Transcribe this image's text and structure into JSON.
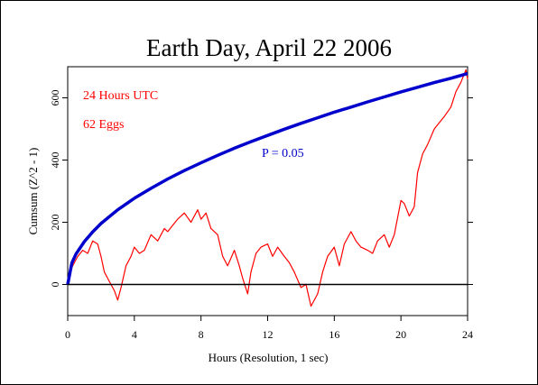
{
  "chart_data": {
    "type": "line",
    "title": "Earth Day, April 22 2006",
    "xlabel": "Hours (Resolution, 1 sec)",
    "ylabel": "Cumsum (Z^2 - 1)",
    "xlim": [
      0,
      24
    ],
    "ylim": [
      -100,
      700
    ],
    "xticks": [
      0,
      4,
      8,
      12,
      16,
      20,
      24
    ],
    "yticks": [
      0,
      200,
      400,
      600
    ],
    "annotations": [
      {
        "text": "24 Hours UTC",
        "color": "#ff0000"
      },
      {
        "text": "62 Eggs",
        "color": "#ff0000"
      },
      {
        "text": "P = 0.05",
        "color": "#0000cc"
      }
    ],
    "series": [
      {
        "role": "cumsum",
        "color": "#ff0000",
        "x": [
          0,
          0.3,
          0.6,
          0.9,
          1.2,
          1.5,
          1.8,
          2.0,
          2.2,
          2.5,
          2.8,
          3.0,
          3.2,
          3.5,
          3.8,
          4.0,
          4.3,
          4.6,
          5.0,
          5.4,
          5.8,
          6.0,
          6.3,
          6.6,
          7.0,
          7.4,
          7.8,
          8.0,
          8.3,
          8.6,
          9.0,
          9.3,
          9.6,
          10.0,
          10.3,
          10.5,
          10.8,
          11.0,
          11.3,
          11.6,
          12.0,
          12.3,
          12.6,
          13.0,
          13.3,
          13.6,
          14.0,
          14.3,
          14.6,
          15.0,
          15.3,
          15.6,
          16.0,
          16.3,
          16.6,
          17.0,
          17.3,
          17.6,
          18.0,
          18.3,
          18.6,
          19.0,
          19.3,
          19.6,
          20.0,
          20.2,
          20.5,
          20.8,
          21.0,
          21.3,
          21.6,
          22.0,
          22.3,
          22.6,
          23.0,
          23.3,
          23.6,
          23.9,
          24.0
        ],
        "y": [
          20,
          60,
          90,
          110,
          100,
          140,
          130,
          90,
          40,
          10,
          -20,
          -50,
          -10,
          60,
          90,
          120,
          100,
          110,
          160,
          140,
          180,
          170,
          190,
          210,
          230,
          200,
          240,
          210,
          230,
          180,
          160,
          90,
          60,
          110,
          60,
          20,
          -30,
          40,
          100,
          120,
          130,
          90,
          120,
          90,
          70,
          40,
          -10,
          0,
          -70,
          -30,
          40,
          90,
          120,
          60,
          130,
          170,
          140,
          120,
          110,
          100,
          140,
          160,
          120,
          160,
          270,
          260,
          220,
          250,
          360,
          420,
          450,
          500,
          520,
          540,
          570,
          620,
          650,
          690,
          660
        ]
      },
      {
        "role": "p005-envelope",
        "color": "#0000cc",
        "x": [
          0,
          0.25,
          0.5,
          1,
          1.5,
          2,
          3,
          4,
          5,
          6,
          7,
          8,
          9,
          10,
          11,
          12,
          13,
          14,
          15,
          16,
          17,
          18,
          19,
          20,
          21,
          22,
          23,
          24
        ],
        "y": [
          0,
          69,
          98,
          138,
          169,
          196,
          240,
          277,
          309,
          339,
          366,
          391,
          415,
          438,
          459,
          479,
          499,
          518,
          536,
          554,
          570,
          587,
          603,
          619,
          634,
          649,
          663,
          678
        ]
      },
      {
        "role": "zero-baseline",
        "color": "#000000",
        "x": [
          0,
          24
        ],
        "y": [
          0,
          0
        ]
      }
    ]
  }
}
